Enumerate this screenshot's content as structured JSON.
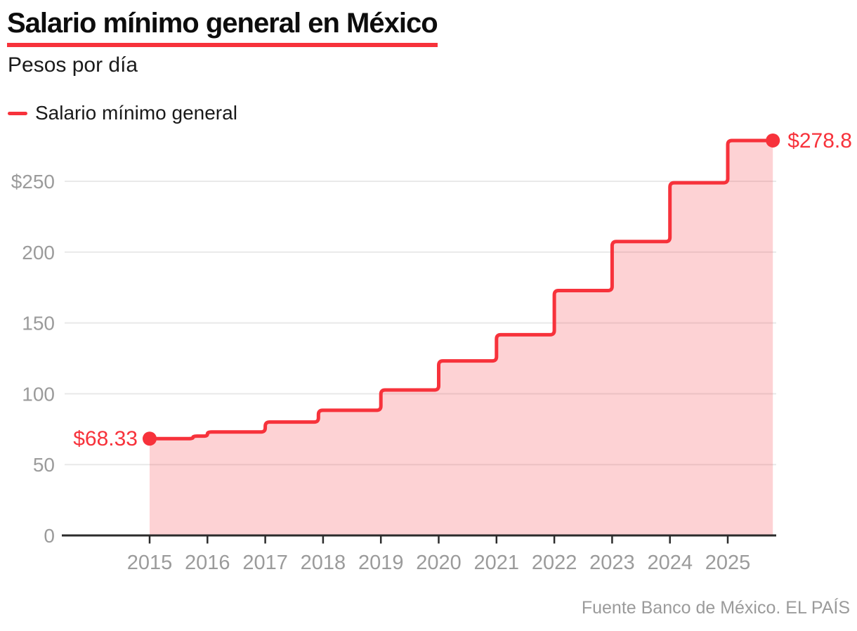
{
  "header": {
    "title": "Salario mínimo general en México",
    "subtitle": "Pesos por día"
  },
  "legend": {
    "label": "Salario mínimo general"
  },
  "footer": {
    "source": "Fuente Banco de México. EL PAÍS"
  },
  "colors": {
    "accent_red": "#f7323b",
    "area_fill": "rgba(247,50,59,0.22)",
    "grid": "#e9e9e9",
    "axis": "#2b2b2b",
    "muted_text": "#9b9b9b",
    "dark_text": "#1a1a1a"
  },
  "chart_data": {
    "type": "area",
    "step": true,
    "title": "Salario mínimo general en México",
    "ylabel": "Pesos por día",
    "legend_position": "top-left",
    "grid": "horizontal",
    "xlim": [
      2013.5,
      2026.2
    ],
    "ylim": [
      0,
      290
    ],
    "x_ticks": [
      2015,
      2016,
      2017,
      2018,
      2019,
      2020,
      2021,
      2022,
      2023,
      2024,
      2025
    ],
    "y_ticks": [
      {
        "value": 0,
        "label": "0"
      },
      {
        "value": 50,
        "label": "50"
      },
      {
        "value": 100,
        "label": "100"
      },
      {
        "value": 150,
        "label": "150"
      },
      {
        "value": 200,
        "label": "200"
      },
      {
        "value": 250,
        "label": "$250"
      }
    ],
    "series": [
      {
        "name": "Salario mínimo general",
        "points": [
          [
            2015.0,
            68.33
          ],
          [
            2015.75,
            70.1
          ],
          [
            2016.0,
            73.04
          ],
          [
            2017.0,
            80.04
          ],
          [
            2017.92,
            88.36
          ],
          [
            2019.0,
            102.68
          ],
          [
            2020.0,
            123.22
          ],
          [
            2021.0,
            141.7
          ],
          [
            2022.0,
            172.87
          ],
          [
            2023.0,
            207.44
          ],
          [
            2024.0,
            248.93
          ],
          [
            2025.0,
            278.8
          ]
        ],
        "end_x": 2025.78
      }
    ],
    "annotations": [
      {
        "text": "$68.33",
        "x": 2015.0,
        "y": 68.33,
        "anchor": "end",
        "dot": true
      },
      {
        "text": "$278.8",
        "x": 2025.78,
        "y": 278.8,
        "anchor": "start",
        "dot": true
      }
    ]
  }
}
